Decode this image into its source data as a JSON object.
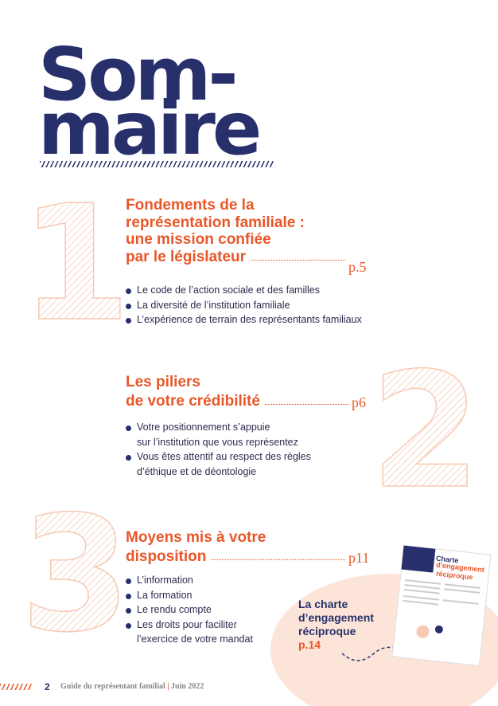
{
  "title": [
    "Som-",
    "maire"
  ],
  "sections": [
    {
      "number": "1",
      "title": [
        "Fondements de la",
        "représentation familiale :",
        "une mission confiée",
        "par le législateur"
      ],
      "page": "p.5",
      "bullets": [
        [
          "Le code de l’action sociale et des familles"
        ],
        [
          "La diversité de l’institution familiale"
        ],
        [
          "L’expérience de terrain des représentants familiaux"
        ]
      ]
    },
    {
      "number": "2",
      "title": [
        "Les piliers",
        "de votre crédibilité"
      ],
      "page": "p6",
      "bullets": [
        [
          "Votre positionnement s’appuie",
          "sur l’institution que vous représentez"
        ],
        [
          "Vous êtes attentif au respect des règles",
          "d’éthique et de déontologie"
        ]
      ]
    },
    {
      "number": "3",
      "title": [
        "Moyens mis à votre",
        "disposition"
      ],
      "page": "p11",
      "bullets": [
        [
          "L’information"
        ],
        [
          "La formation"
        ],
        [
          "Le rendu compte"
        ],
        [
          "Les droits pour faciliter",
          "l’exercice de votre mandat"
        ]
      ]
    }
  ],
  "callout": {
    "title": [
      "La charte",
      "d’engagement",
      "réciproque"
    ],
    "page": "p.14"
  },
  "thumbnail": {
    "title": [
      "Charte",
      "d’engagement",
      "réciproque"
    ]
  },
  "footer": {
    "page_number": "2",
    "guide": "Guide du représentant familial",
    "date": "Juin 2022"
  }
}
